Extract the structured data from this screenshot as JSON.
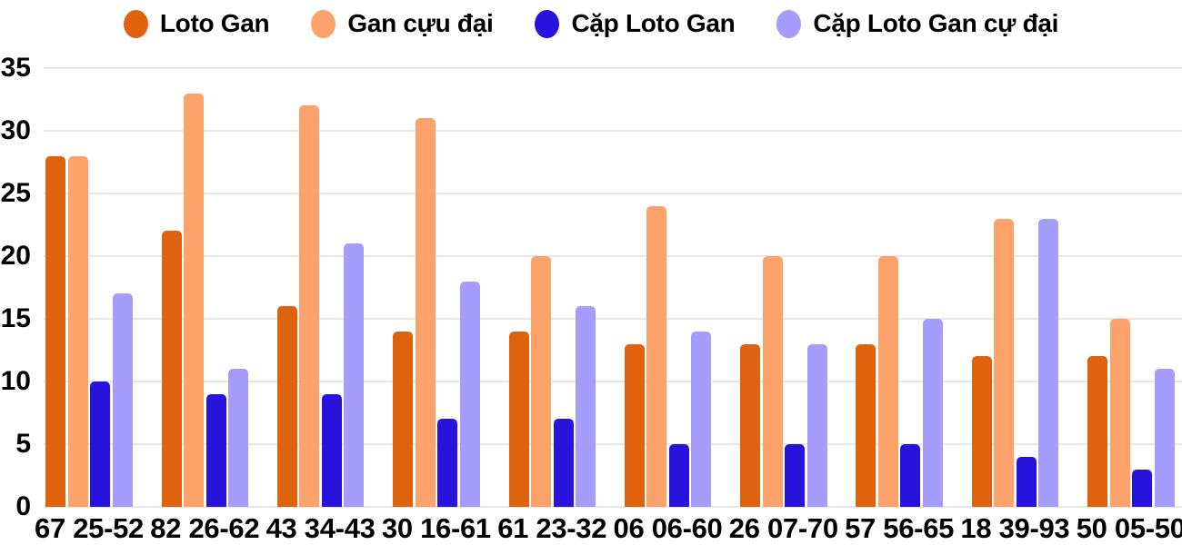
{
  "chart_data": {
    "type": "bar",
    "title": "",
    "xlabel": "",
    "ylabel": "",
    "categories": [
      "67 25-52",
      "82 26-62",
      "43 34-43",
      "30 16-61",
      "61 23-32",
      "06 06-60",
      "26 07-70",
      "57 56-65",
      "18 39-93",
      "50 05-50"
    ],
    "series": [
      {
        "name": "Loto Gan",
        "color": "#df620e",
        "values": [
          28,
          22,
          16,
          14,
          14,
          13,
          13,
          13,
          12,
          12
        ]
      },
      {
        "name": "Gan cựu đại",
        "color": "#fda26b",
        "values": [
          28,
          33,
          32,
          31,
          20,
          24,
          20,
          20,
          23,
          15
        ]
      },
      {
        "name": "Cặp Loto Gan",
        "color": "#2713dc",
        "values": [
          10,
          9,
          9,
          7,
          7,
          5,
          5,
          5,
          4,
          3
        ]
      },
      {
        "name": "Cặp Loto Gan cự đại",
        "color": "#a59cfb",
        "values": [
          17,
          11,
          21,
          18,
          16,
          14,
          13,
          15,
          23,
          11
        ]
      }
    ],
    "ylim": [
      0,
      35
    ],
    "yticks": [
      0,
      5,
      10,
      15,
      20,
      25,
      30,
      35
    ],
    "grid": true,
    "legend_position": "top",
    "gridline_color": "#e7e7e7",
    "text_color": "#000000"
  }
}
